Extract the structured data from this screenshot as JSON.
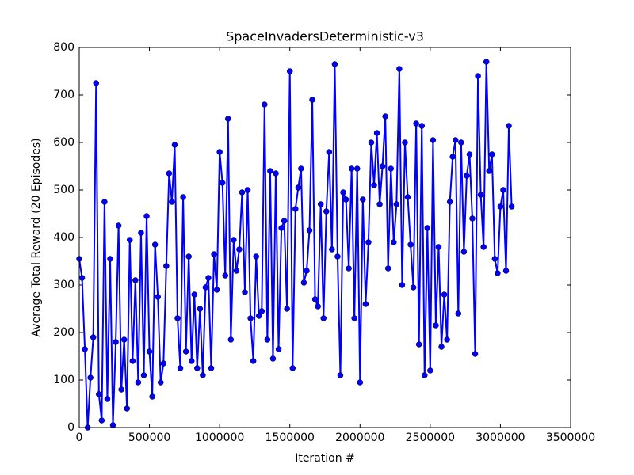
{
  "chart_data": {
    "type": "line",
    "title": "SpaceInvadersDeterministic-v3",
    "x_label": "Iteration #",
    "y_label": "Average Total Reward (20 Episodes)",
    "x": [
      0,
      20000,
      40000,
      60000,
      80000,
      100000,
      120000,
      140000,
      160000,
      180000,
      200000,
      220000,
      240000,
      260000,
      280000,
      300000,
      320000,
      340000,
      360000,
      380000,
      400000,
      420000,
      440000,
      460000,
      480000,
      500000,
      520000,
      540000,
      560000,
      580000,
      600000,
      620000,
      640000,
      660000,
      680000,
      700000,
      720000,
      740000,
      760000,
      780000,
      800000,
      820000,
      840000,
      860000,
      880000,
      900000,
      920000,
      940000,
      960000,
      980000,
      1000000,
      1020000,
      1040000,
      1060000,
      1080000,
      1100000,
      1120000,
      1140000,
      1160000,
      1180000,
      1200000,
      1220000,
      1240000,
      1260000,
      1280000,
      1300000,
      1320000,
      1340000,
      1360000,
      1380000,
      1400000,
      1420000,
      1440000,
      1460000,
      1480000,
      1500000,
      1520000,
      1540000,
      1560000,
      1580000,
      1600000,
      1620000,
      1640000,
      1660000,
      1680000,
      1700000,
      1720000,
      1740000,
      1760000,
      1780000,
      1800000,
      1820000,
      1840000,
      1860000,
      1880000,
      1900000,
      1920000,
      1940000,
      1960000,
      1980000,
      2000000,
      2020000,
      2040000,
      2060000,
      2080000,
      2100000,
      2120000,
      2140000,
      2160000,
      2180000,
      2200000,
      2220000,
      2240000,
      2260000,
      2280000,
      2300000,
      2320000,
      2340000,
      2360000,
      2380000,
      2400000,
      2420000,
      2440000,
      2460000,
      2480000,
      2500000,
      2520000,
      2540000,
      2560000,
      2580000,
      2600000,
      2620000,
      2640000,
      2660000,
      2680000,
      2700000,
      2720000,
      2740000,
      2760000,
      2780000,
      2800000,
      2820000,
      2840000,
      2860000,
      2880000,
      2900000,
      2920000,
      2940000,
      2960000,
      2980000,
      3000000,
      3020000,
      3040000,
      3060000,
      3080000
    ],
    "values": [
      355,
      315,
      165,
      0,
      105,
      190,
      725,
      70,
      15,
      475,
      60,
      355,
      5,
      180,
      425,
      80,
      185,
      40,
      395,
      140,
      310,
      95,
      410,
      110,
      445,
      160,
      65,
      385,
      275,
      95,
      135,
      340,
      535,
      475,
      595,
      230,
      125,
      485,
      160,
      360,
      140,
      280,
      125,
      250,
      110,
      295,
      315,
      125,
      365,
      290,
      580,
      515,
      320,
      650,
      185,
      395,
      330,
      375,
      495,
      285,
      500,
      230,
      140,
      360,
      235,
      245,
      680,
      185,
      540,
      145,
      535,
      165,
      420,
      435,
      250,
      750,
      125,
      460,
      505,
      545,
      305,
      330,
      415,
      690,
      270,
      255,
      470,
      230,
      455,
      580,
      375,
      765,
      360,
      110,
      495,
      480,
      335,
      545,
      230,
      545,
      95,
      480,
      260,
      390,
      600,
      510,
      620,
      470,
      550,
      655,
      335,
      545,
      390,
      470,
      755,
      300,
      600,
      485,
      385,
      295,
      640,
      175,
      635,
      110,
      420,
      120,
      605,
      215,
      380,
      170,
      280,
      185,
      475,
      570,
      605,
      240,
      600,
      370,
      530,
      575,
      440,
      155,
      740,
      490,
      380,
      770,
      540,
      575,
      355,
      325,
      465,
      500,
      330,
      635,
      465
    ],
    "color": "#0000ff",
    "xlim": [
      0,
      3500000
    ],
    "xticks": [
      0,
      500000,
      1000000,
      1500000,
      2000000,
      2500000,
      3000000,
      3500000
    ],
    "ylim": [
      0,
      800
    ],
    "yticks": [
      0,
      100,
      200,
      300,
      400,
      500,
      600,
      700,
      800
    ]
  }
}
